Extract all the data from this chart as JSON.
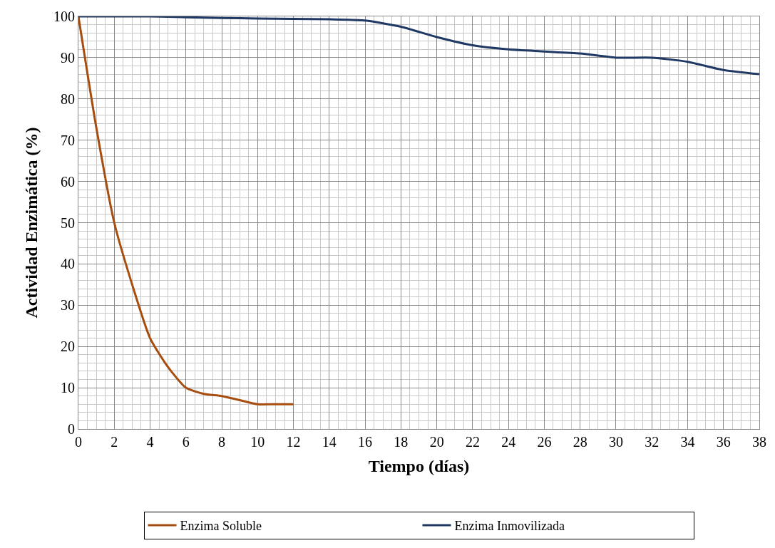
{
  "chart_data": {
    "type": "line",
    "xlabel": "Tiempo (días)",
    "ylabel": "Actividad Enzimática (%)",
    "xlim": [
      0,
      38
    ],
    "xticks": [
      0,
      2,
      4,
      6,
      8,
      10,
      12,
      14,
      16,
      18,
      20,
      22,
      24,
      26,
      28,
      30,
      32,
      34,
      36,
      38
    ],
    "ylim": [
      0,
      100
    ],
    "yticks": [
      0,
      10,
      20,
      30,
      40,
      50,
      60,
      70,
      80,
      90,
      100
    ],
    "grid": true,
    "legend": "bottom",
    "marker": "none",
    "line_style": "solid",
    "series": [
      {
        "name": "Enzima Soluble",
        "color": "#a64d0f",
        "x": [
          0,
          1,
          2,
          3,
          4,
          5,
          6,
          7,
          8,
          9,
          10,
          11,
          12
        ],
        "values": [
          100,
          73,
          50,
          35,
          22,
          15,
          10,
          8.5,
          8,
          7,
          6,
          6,
          6
        ]
      },
      {
        "name": "Enzima Inmovilizada",
        "color": "#1f3864",
        "x": [
          0,
          2,
          4,
          6,
          8,
          10,
          12,
          14,
          16,
          18,
          20,
          22,
          24,
          26,
          28,
          30,
          32,
          34,
          36,
          38
        ],
        "values": [
          100,
          100,
          100,
          99.8,
          99.6,
          99.5,
          99.4,
          99.3,
          99,
          97.5,
          95,
          93,
          92,
          91.5,
          91,
          90,
          90,
          89,
          87,
          86
        ]
      }
    ]
  }
}
